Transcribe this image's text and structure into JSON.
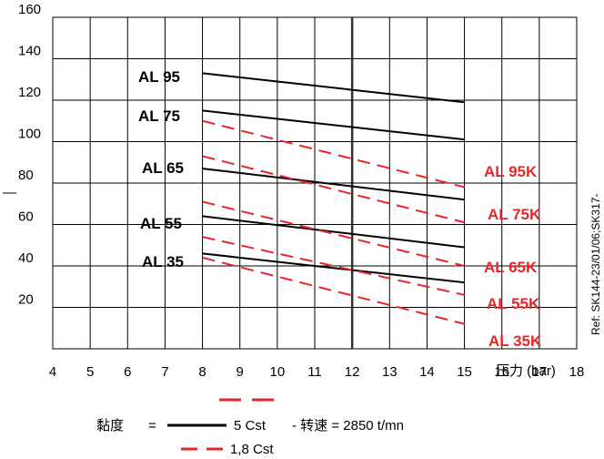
{
  "chart_data": {
    "type": "line",
    "xlabel": "压力 (bar)",
    "x_ticks": [
      4,
      5,
      6,
      7,
      8,
      9,
      10,
      11,
      12,
      13,
      14,
      15,
      16,
      17,
      18
    ],
    "y_ticks": [
      20,
      40,
      60,
      80,
      100,
      120,
      140,
      160
    ],
    "xlim": [
      4,
      18
    ],
    "ylim": [
      0,
      160
    ],
    "grid": true,
    "series": [
      {
        "name": "AL 95",
        "style": "solid",
        "x": [
          8,
          15
        ],
        "y": [
          133,
          119
        ]
      },
      {
        "name": "AL 75",
        "style": "solid",
        "x": [
          8,
          15
        ],
        "y": [
          115,
          101
        ]
      },
      {
        "name": "AL 65",
        "style": "solid",
        "x": [
          8,
          15
        ],
        "y": [
          87,
          72
        ]
      },
      {
        "name": "AL 55",
        "style": "solid",
        "x": [
          8,
          15
        ],
        "y": [
          64,
          49
        ]
      },
      {
        "name": "AL 35",
        "style": "solid",
        "x": [
          8,
          15
        ],
        "y": [
          46,
          32
        ]
      },
      {
        "name": "AL 95K",
        "style": "dashed",
        "x": [
          8,
          15
        ],
        "y": [
          110,
          78
        ]
      },
      {
        "name": "AL 75K",
        "style": "dashed",
        "x": [
          8,
          15
        ],
        "y": [
          93,
          61
        ]
      },
      {
        "name": "AL 65K",
        "style": "dashed",
        "x": [
          8,
          15
        ],
        "y": [
          71,
          40
        ]
      },
      {
        "name": "AL 55K",
        "style": "dashed",
        "x": [
          8,
          15
        ],
        "y": [
          54,
          26
        ]
      },
      {
        "name": "AL 35K",
        "style": "dashed",
        "x": [
          8,
          15
        ],
        "y": [
          44,
          12
        ]
      }
    ],
    "legend": {
      "viscosity_label": "黏度",
      "equals": "=",
      "solid_value": "5 Cst",
      "speed_text": "- 转速 = 2850 t/mn",
      "dashed_value": "1,8 Cst"
    },
    "reference_text": "Ref: SK144-23/01/06;SK317-",
    "colors": {
      "solid": "#000000",
      "dashed": "#e8262a",
      "grid": "#000000"
    }
  }
}
